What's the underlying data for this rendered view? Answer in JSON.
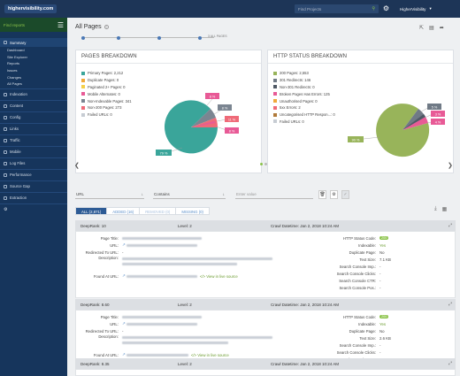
{
  "topbar": {
    "brand": "highervisibility.com",
    "find_projects": "Find Projects",
    "user": "HigherVisibility"
  },
  "sidebar": {
    "find_reports": "Find reports",
    "summary": "Summary",
    "sub": [
      "Dashboard",
      "Site Explorer",
      "Reports",
      "Issues",
      "Changes",
      "All Pages"
    ],
    "sections": [
      "Indexation",
      "Content",
      "Config",
      "Links",
      "Traffic",
      "Mobile",
      "Log Files",
      "Performance",
      "Source Gap",
      "Extraction"
    ]
  },
  "page": {
    "title": "All Pages",
    "timeline_label": "3 ALL PAGES"
  },
  "pages_breakdown": {
    "title": "PAGES BREAKDOWN",
    "legend": [
      {
        "label": "Primary Pages: 2,212",
        "color": "#3aa59a"
      },
      {
        "label": "Duplicate Pages: 0",
        "color": "#f0a93b"
      },
      {
        "label": "Paginated 2+ Pages: 0",
        "color": "#f5d04a"
      },
      {
        "label": "Mobile Alternates: 0",
        "color": "#e85a96"
      },
      {
        "label": "Non-Indexable Pages: 341",
        "color": "#7b8591"
      },
      {
        "label": "Non-200 Pages: 273",
        "color": "#ef6a78"
      },
      {
        "label": "Failed URLs: 0",
        "color": "#c7ccd3"
      }
    ],
    "callouts": [
      "8 %",
      "8 %",
      "11 %",
      "8 %",
      "79 %"
    ]
  },
  "http_breakdown": {
    "title": "HTTP STATUS BREAKDOWN",
    "legend": [
      {
        "label": "200 Pages: 2,553",
        "color": "#98b45a"
      },
      {
        "label": "301 Redirects: 146",
        "color": "#707a86"
      },
      {
        "label": "Non-301 Redirects: 0",
        "color": "#4f5965"
      },
      {
        "label": "Broken Pages Has Errors: 125",
        "color": "#e85a96"
      },
      {
        "label": "Unauthorised Pages: 0",
        "color": "#f0a93b"
      },
      {
        "label": "5xx Errors: 2",
        "color": "#ef6a78"
      },
      {
        "label": "Uncategorised HTTP Respon...: 0",
        "color": "#b07a3a"
      },
      {
        "label": "Failed URLs: 0",
        "color": "#c7ccd3"
      }
    ],
    "callouts": [
      "5 %",
      "3 %",
      "4 %",
      "90 %"
    ]
  },
  "filters": {
    "field1": "URL",
    "field2": "Contains",
    "placeholder": "Enter value"
  },
  "tabs": [
    "ALL (2,871)",
    "ADDED (16)",
    "REMOVED (0)",
    "MISSING (0)"
  ],
  "labels": {
    "page_title": "Page Title:",
    "url": "URL:",
    "redirected": "Redirected To URL:",
    "description": "Description:",
    "found_at": "Found At URL:",
    "http_status": "HTTP Status Code:",
    "indexable": "Indexable:",
    "duplicate": "Duplicate Page:",
    "text_size": "Text Size:",
    "sc_imp": "Search Console Imp.:",
    "sc_clicks": "Search Console Clicks:",
    "sc_ctr": "Search Console CTR:",
    "sc_pos": "Search Console Pos.:",
    "view_source": "</> View in live source",
    "dash": "-"
  },
  "rows": [
    {
      "deeprank": "DeepRank: 10",
      "level": "Level: 2",
      "crawl": "Crawl Datetime: Jan 2, 2018 10:24 AM",
      "status": "200",
      "indexable": "Yes",
      "duplicate": "No",
      "text_size": "7.1 KB"
    },
    {
      "deeprank": "DeepRank: 8.60",
      "level": "Level: 2",
      "crawl": "Crawl Datetime: Jan 2, 2018 10:24 AM",
      "status": "200",
      "indexable": "Yes",
      "duplicate": "No",
      "text_size": "2.6 KB"
    },
    {
      "deeprank": "DeepRank: 8.35",
      "level": "Level: 2",
      "crawl": "Crawl Datetime: Jan 2, 2018 10:24 AM"
    }
  ]
}
